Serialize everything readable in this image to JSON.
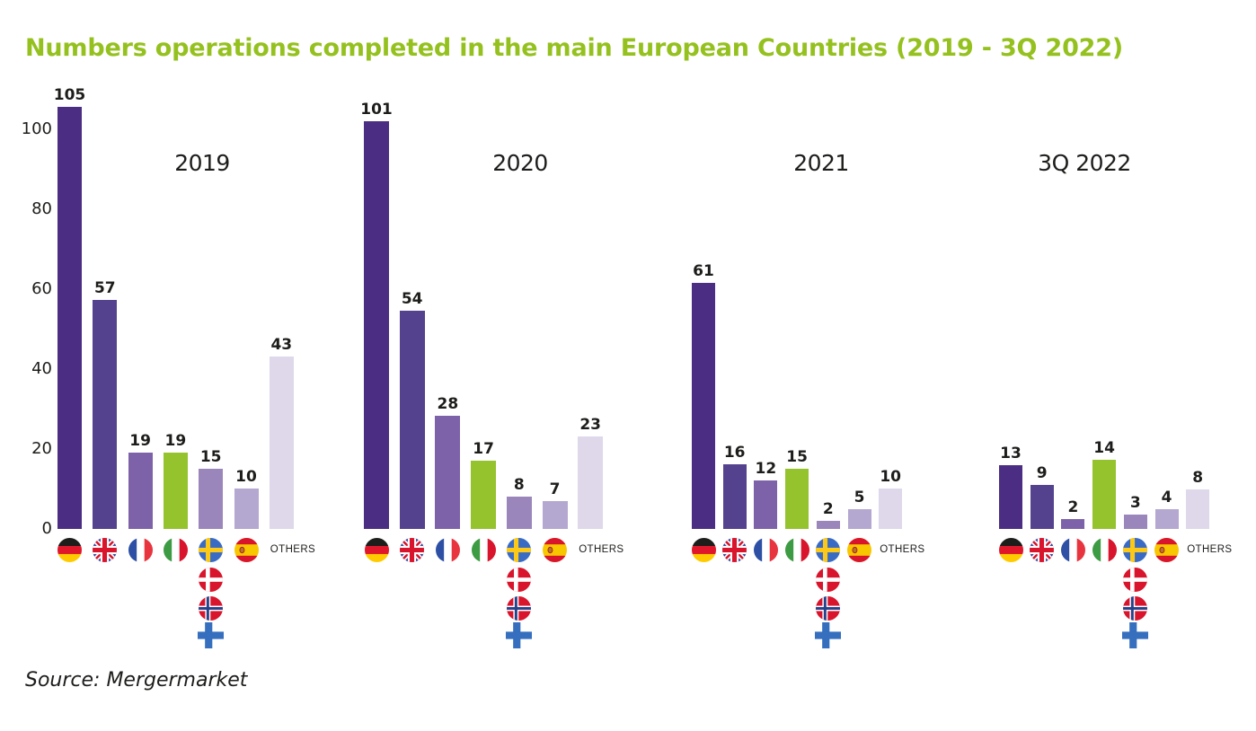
{
  "title": "Numbers operations completed in the main European Countries (2019 - 3Q 2022)",
  "source_note": "Source: Mergermarket",
  "y_axis": {
    "tick_labels": [
      "0",
      "20",
      "40",
      "60",
      "80",
      "100"
    ]
  },
  "legend": {
    "others_label": "OTHERS",
    "flag_columns": [
      {
        "country": "Germany",
        "flag": "germany"
      },
      {
        "country": "United Kingdom",
        "flag": "uk"
      },
      {
        "country": "France",
        "flag": "france"
      },
      {
        "country": "Italy",
        "flag": "italy"
      },
      {
        "country": "Nordics",
        "flag": "sweden",
        "stacked": [
          "denmark",
          "norway",
          "finland"
        ]
      },
      {
        "country": "Spain",
        "flag": "spain"
      },
      {
        "country": "Others",
        "flag": null
      }
    ]
  },
  "chart_data": {
    "type": "bar",
    "title": "Numbers operations completed in the main European Countries (2019 - 3Q 2022)",
    "categories": [
      "Germany",
      "United Kingdom",
      "France",
      "Italy",
      "Nordics (Sweden, Denmark, Norway, Finland)",
      "Spain",
      "Others"
    ],
    "series": [
      {
        "name": "2019",
        "values": [
          105,
          57,
          19,
          19,
          15,
          10,
          43
        ]
      },
      {
        "name": "2020",
        "values": [
          101,
          54,
          28,
          17,
          8,
          7,
          23
        ]
      },
      {
        "name": "2021",
        "values": [
          61,
          16,
          12,
          15,
          2,
          5,
          10
        ]
      },
      {
        "name": "3Q 2022",
        "values": [
          13,
          9,
          2,
          14,
          3,
          4,
          8
        ]
      }
    ],
    "xlabel": "",
    "ylabel": "",
    "y_ticks": [
      0,
      20,
      40,
      60,
      80,
      100
    ],
    "ylim": [
      0,
      110
    ],
    "grid": false,
    "legend_position": "flag icons below each bar group",
    "source": "Source: Mergermarket"
  },
  "colors": {
    "title_green": "#95c11f",
    "text_dark": "#1d1d1b",
    "bars": [
      "#4b2e83",
      "#54428f",
      "#7e62a9",
      "#95c32e",
      "#9a86bb",
      "#b4a7d0",
      "#ded8ea"
    ]
  }
}
